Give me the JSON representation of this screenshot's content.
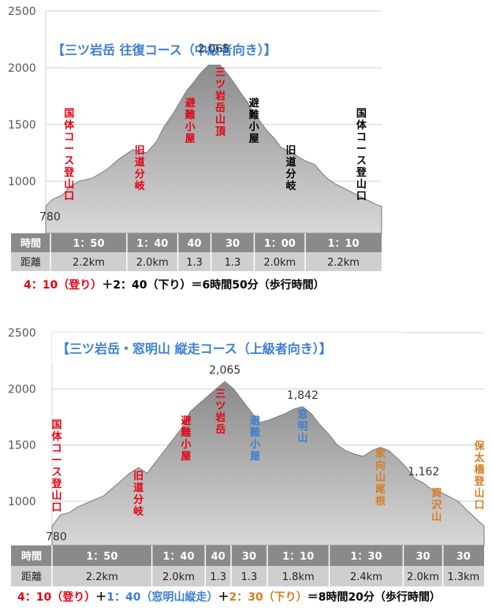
{
  "colors": {
    "red": "#e60012",
    "black": "#000000",
    "blue": "#3b7fd1",
    "orange": "#d67d1f",
    "title": "#3b7fd1",
    "band_dark": "#8a8a8a",
    "band_light": "#cfcfcf"
  },
  "chart_data": [
    {
      "type": "area",
      "title": "【三ツ岩岳 往復コース（中級者向き）】",
      "y_ticks": [
        "2500",
        "2000",
        "1500",
        "1000"
      ],
      "ylim": [
        700,
        2500
      ],
      "grid": true,
      "profile": {
        "x": [
          0,
          2,
          5,
          7,
          10,
          14,
          18,
          22,
          26,
          30,
          33,
          35,
          38,
          40,
          42,
          44,
          46,
          48,
          50,
          52,
          54,
          56,
          58,
          60,
          62,
          64,
          66,
          68,
          70,
          72,
          74,
          76,
          78,
          80,
          82,
          84,
          86,
          88,
          90,
          92,
          94,
          96,
          98,
          100
        ],
        "y": [
          780,
          840,
          880,
          950,
          1000,
          1030,
          1100,
          1200,
          1280,
          1250,
          1350,
          1470,
          1600,
          1700,
          1800,
          1870,
          1950,
          2010,
          2065,
          2020,
          1950,
          1870,
          1780,
          1700,
          1600,
          1520,
          1440,
          1380,
          1300,
          1270,
          1240,
          1200,
          1170,
          1150,
          1080,
          1020,
          980,
          950,
          920,
          890,
          860,
          830,
          800,
          780
        ]
      },
      "peak_label": "2,065",
      "start_label": "780",
      "annotations": [
        {
          "text": "国体コース登山口",
          "color": "red",
          "x": 7
        },
        {
          "text": "旧道分岐",
          "color": "red",
          "x": 28
        },
        {
          "text": "避難小屋",
          "color": "red",
          "x": 43
        },
        {
          "text": "三ツ岩岳山頂",
          "color": "red",
          "x": 52
        },
        {
          "text": "避難小屋",
          "color": "black",
          "x": 62
        },
        {
          "text": "旧道分岐",
          "color": "black",
          "x": 73
        },
        {
          "text": "国体コース登山口",
          "color": "black",
          "x": 94
        }
      ],
      "table": {
        "time_label": "時間",
        "dist_label": "距離",
        "segments": [
          {
            "time": "1：50",
            "dist": "2.2km",
            "w": 3
          },
          {
            "time": "1：40",
            "dist": "2.0km",
            "w": 2
          },
          {
            "time": "40",
            "dist": "1.3",
            "w": 1.3
          },
          {
            "time": "30",
            "dist": "1.3",
            "w": 1.7
          },
          {
            "time": "1：00",
            "dist": "2.0km",
            "w": 2
          },
          {
            "time": "1：10",
            "dist": "2.2km",
            "w": 3
          }
        ]
      },
      "summary": [
        {
          "text": "4：10（登り）",
          "color": "red"
        },
        {
          "text": "＋2：40（下り）＝6時間50分（歩行時間）",
          "color": "black"
        }
      ]
    },
    {
      "type": "area",
      "title": "【三ツ岩岳・窓明山 縦走コース（上級者向き）】",
      "y_ticks": [
        "2500",
        "2000",
        "1500",
        "1000"
      ],
      "ylim": [
        700,
        2500
      ],
      "grid": true,
      "profile": {
        "x": [
          0,
          2,
          4,
          6,
          9,
          12,
          15,
          18,
          20,
          22,
          25,
          28,
          30,
          32,
          35,
          38,
          40,
          42,
          44,
          46,
          48,
          50,
          52,
          54,
          56,
          58,
          60,
          62,
          64,
          66,
          68,
          70,
          72,
          74,
          76,
          78,
          80,
          82,
          84,
          86,
          88,
          90,
          92,
          94,
          96,
          98,
          100
        ],
        "y": [
          780,
          880,
          900,
          950,
          1000,
          1050,
          1150,
          1250,
          1300,
          1250,
          1400,
          1550,
          1650,
          1800,
          1900,
          2000,
          2065,
          2000,
          1900,
          1800,
          1700,
          1720,
          1750,
          1780,
          1820,
          1842,
          1780,
          1680,
          1600,
          1500,
          1450,
          1420,
          1400,
          1450,
          1480,
          1450,
          1380,
          1300,
          1200,
          1162,
          1100,
          1080,
          1040,
          1000,
          920,
          850,
          780
        ]
      },
      "peak_label": "2,065",
      "second_peak_label": "1,842",
      "third_label": "1,162",
      "start_label": "780",
      "annotations": [
        {
          "text": "国体コース登山口",
          "color": "red",
          "x": 1
        },
        {
          "text": "旧道分岐",
          "color": "red",
          "x": 20
        },
        {
          "text": "避難小屋",
          "color": "red",
          "x": 31
        },
        {
          "text": "三ツ岩岳",
          "color": "red",
          "x": 39
        },
        {
          "text": "避難小屋",
          "color": "blue",
          "x": 47
        },
        {
          "text": "窓明山",
          "color": "blue",
          "x": 58
        },
        {
          "text": "家向山尾根",
          "color": "orange",
          "x": 76
        },
        {
          "text": "巽沢山",
          "color": "orange",
          "x": 89
        },
        {
          "text": "保太橋登山口",
          "color": "orange",
          "x": 99
        }
      ],
      "table": {
        "time_label": "時間",
        "dist_label": "距離",
        "segments": [
          {
            "time": "1：50",
            "dist": "2.2km",
            "w": 2.9
          },
          {
            "time": "1：40",
            "dist": "2.0km",
            "w": 1.55
          },
          {
            "time": "40",
            "dist": "1.3",
            "w": 0.75
          },
          {
            "time": "30",
            "dist": "1.3",
            "w": 1.05
          },
          {
            "time": "1：10",
            "dist": "1.8km",
            "w": 1.8
          },
          {
            "time": "1：30",
            "dist": "2.4km",
            "w": 2.15
          },
          {
            "time": "30",
            "dist": "2.0km",
            "w": 1.15
          },
          {
            "time": "30",
            "dist": "1.3km",
            "w": 1.2
          }
        ]
      },
      "summary": [
        {
          "text": "4：10（登り）",
          "color": "red"
        },
        {
          "text": "＋",
          "color": "black"
        },
        {
          "text": "1：40（窓明山縦走）",
          "color": "blue"
        },
        {
          "text": "＋",
          "color": "black"
        },
        {
          "text": "2：30（下り）",
          "color": "orange"
        },
        {
          "text": "＝8時間20分（歩行時間）",
          "color": "black"
        }
      ]
    }
  ]
}
